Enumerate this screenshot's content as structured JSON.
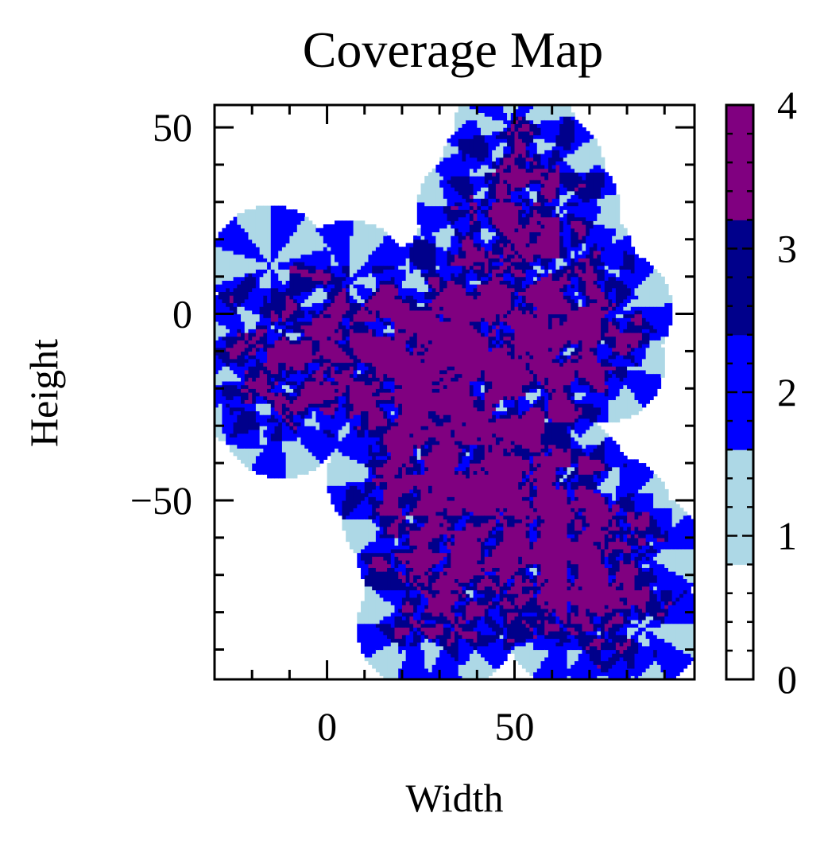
{
  "chart_data": {
    "type": "heatmap",
    "title": "Coverage Map",
    "xlabel": "Width",
    "ylabel": "Height",
    "xlim": [
      -30,
      98
    ],
    "ylim": [
      -98,
      56
    ],
    "xticks": [
      0,
      50
    ],
    "xtick_labels": [
      "0",
      "50"
    ],
    "yticks": [
      50,
      0,
      -50
    ],
    "ytick_labels": [
      "50",
      "0",
      "−50"
    ],
    "colorbar": {
      "range": [
        0,
        4
      ],
      "ticks": [
        0,
        1,
        2,
        3,
        4
      ],
      "tick_labels": [
        "0",
        "1",
        "2",
        "3",
        "4"
      ],
      "levels": [
        {
          "value": 0,
          "color": "#ffffff"
        },
        {
          "value": 1,
          "color": "#add8e6"
        },
        {
          "value": 2,
          "color": "#0000ff"
        },
        {
          "value": 3,
          "color": "#00008b"
        },
        {
          "value": 4,
          "color": "#800080"
        }
      ]
    },
    "sensors": [
      [
        -15,
        13
      ],
      [
        -12,
        -3
      ],
      [
        -20,
        -8
      ],
      [
        -12,
        -18
      ],
      [
        -20,
        -20
      ],
      [
        -12,
        -28
      ],
      [
        6,
        9
      ],
      [
        4,
        -3
      ],
      [
        0,
        -13
      ],
      [
        8,
        -13
      ],
      [
        14,
        -3
      ],
      [
        18,
        -13
      ],
      [
        12,
        -22
      ],
      [
        24,
        -5
      ],
      [
        28,
        -10
      ],
      [
        22,
        -20
      ],
      [
        30,
        5
      ],
      [
        34,
        -3
      ],
      [
        40,
        -8
      ],
      [
        34,
        -18
      ],
      [
        44,
        -8
      ],
      [
        46,
        -3
      ],
      [
        50,
        -18
      ],
      [
        50,
        50
      ],
      [
        46,
        38
      ],
      [
        58,
        38
      ],
      [
        40,
        28
      ],
      [
        54,
        28
      ],
      [
        62,
        28
      ],
      [
        38,
        14
      ],
      [
        48,
        14
      ],
      [
        58,
        10
      ],
      [
        66,
        14
      ],
      [
        56,
        -5
      ],
      [
        68,
        -3
      ],
      [
        76,
        1
      ],
      [
        70,
        -5
      ],
      [
        64,
        -13
      ],
      [
        74,
        -13
      ],
      [
        58,
        -20
      ],
      [
        50,
        -30
      ],
      [
        22,
        -30
      ],
      [
        24,
        -34
      ],
      [
        34,
        -34
      ],
      [
        42,
        -30
      ],
      [
        58,
        -38
      ],
      [
        16,
        -44
      ],
      [
        26,
        -44
      ],
      [
        36,
        -44
      ],
      [
        44,
        -44
      ],
      [
        54,
        -44
      ],
      [
        64,
        -44
      ],
      [
        20,
        -54
      ],
      [
        30,
        -54
      ],
      [
        46,
        -54
      ],
      [
        56,
        -54
      ],
      [
        66,
        -54
      ],
      [
        76,
        -54
      ],
      [
        24,
        -64
      ],
      [
        34,
        -64
      ],
      [
        54,
        -64
      ],
      [
        64,
        -64
      ],
      [
        74,
        -64
      ],
      [
        84,
        -64
      ],
      [
        26,
        -74
      ],
      [
        36,
        -74
      ],
      [
        46,
        -74
      ],
      [
        56,
        -74
      ],
      [
        66,
        -74
      ],
      [
        76,
        -74
      ],
      [
        24,
        -84
      ],
      [
        34,
        -84
      ],
      [
        64,
        -84
      ],
      [
        74,
        -84
      ],
      [
        84,
        -84
      ]
    ],
    "sensor_radius": 16,
    "sensor_beam_half_angle_deg": 35
  }
}
